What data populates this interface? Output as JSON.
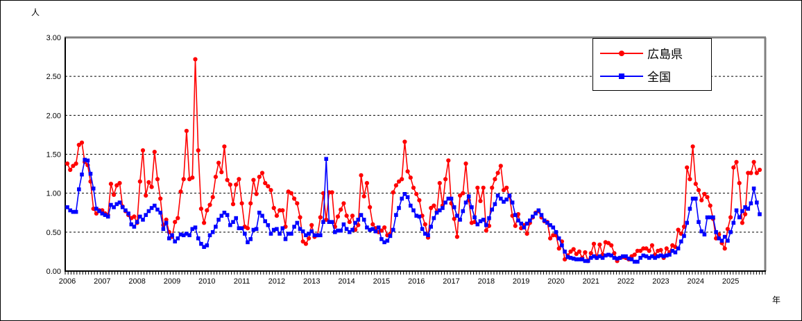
{
  "page": {
    "background": "#FFFFFF",
    "border_color": "#000000"
  },
  "chart_data": {
    "type": "line",
    "title": "",
    "ylabel": "人",
    "xlabel": "年",
    "ylim": [
      0.0,
      3.0
    ],
    "ytick_interval": 0.5,
    "ytick_labels": [
      "0.00",
      "0.50",
      "1.00",
      "1.50",
      "2.00",
      "2.50",
      "3.00"
    ],
    "x_unit": "month",
    "x_start": "2006-01",
    "x_end": "2025-11",
    "x_year_labels": [
      "2006",
      "2007",
      "2008",
      "2009",
      "2010",
      "2011",
      "2012",
      "2013",
      "2014",
      "2015",
      "2016",
      "2017",
      "2018",
      "2019",
      "2020",
      "2021",
      "2022",
      "2023",
      "2024",
      "2025"
    ],
    "grid": "horizontal-dashed",
    "legend_position": "top-right",
    "series": [
      {
        "key": "hiroshima",
        "name": "広島県",
        "color": "#FF0000",
        "marker": "circle",
        "values": [
          1.38,
          1.3,
          1.35,
          1.38,
          1.62,
          1.65,
          1.4,
          1.36,
          1.15,
          0.8,
          0.74,
          0.78,
          0.78,
          0.74,
          0.72,
          1.12,
          0.98,
          1.1,
          1.13,
          0.83,
          0.77,
          0.72,
          0.68,
          0.7,
          0.62,
          1.15,
          1.55,
          0.97,
          1.14,
          1.08,
          1.53,
          1.18,
          0.93,
          0.59,
          0.66,
          0.5,
          0.44,
          0.63,
          0.68,
          1.02,
          1.18,
          1.8,
          1.18,
          1.2,
          2.72,
          1.55,
          0.8,
          0.62,
          0.78,
          0.85,
          0.95,
          1.21,
          1.39,
          1.27,
          1.6,
          1.17,
          1.11,
          0.86,
          1.11,
          1.18,
          0.87,
          0.57,
          0.55,
          0.87,
          1.17,
          0.99,
          1.21,
          1.26,
          1.13,
          1.09,
          1.04,
          0.81,
          0.71,
          0.78,
          0.78,
          0.57,
          1.02,
          1.0,
          0.93,
          0.87,
          0.69,
          0.38,
          0.35,
          0.42,
          0.59,
          0.44,
          0.46,
          0.69,
          1.0,
          0.66,
          1.01,
          1.01,
          0.57,
          0.7,
          0.79,
          0.87,
          0.71,
          0.63,
          0.71,
          0.53,
          0.59,
          1.23,
          0.96,
          1.13,
          0.82,
          0.6,
          0.55,
          0.5,
          0.52,
          0.56,
          0.46,
          0.48,
          1.01,
          1.1,
          1.15,
          1.18,
          1.66,
          1.28,
          1.2,
          1.07,
          0.99,
          0.91,
          0.71,
          0.6,
          0.43,
          0.81,
          0.84,
          0.76,
          1.13,
          0.84,
          1.18,
          1.42,
          0.87,
          0.67,
          0.44,
          0.97,
          1.0,
          1.38,
          0.91,
          0.62,
          0.63,
          1.07,
          0.9,
          1.07,
          0.52,
          0.58,
          1.07,
          1.18,
          1.26,
          1.35,
          1.04,
          1.07,
          0.96,
          0.71,
          0.58,
          0.73,
          0.55,
          0.59,
          0.48,
          0.62,
          0.69,
          0.75,
          0.77,
          0.69,
          0.64,
          0.63,
          0.42,
          0.46,
          0.46,
          0.29,
          0.38,
          0.15,
          0.2,
          0.25,
          0.28,
          0.22,
          0.25,
          0.17,
          0.24,
          0.13,
          0.23,
          0.35,
          0.17,
          0.34,
          0.21,
          0.37,
          0.36,
          0.33,
          0.23,
          0.13,
          0.17,
          0.18,
          0.17,
          0.15,
          0.19,
          0.21,
          0.26,
          0.26,
          0.29,
          0.29,
          0.26,
          0.33,
          0.21,
          0.26,
          0.27,
          0.17,
          0.29,
          0.24,
          0.33,
          0.31,
          0.53,
          0.48,
          0.57,
          1.33,
          1.18,
          1.6,
          1.12,
          1.04,
          0.91,
          0.99,
          0.95,
          0.84,
          0.67,
          0.42,
          0.47,
          0.36,
          0.29,
          0.54,
          0.69,
          1.33,
          1.4,
          1.13,
          0.62,
          0.73,
          1.26,
          1.26,
          1.4,
          1.26,
          1.3
        ]
      },
      {
        "key": "zenkoku",
        "name": "全国",
        "color": "#0000FF",
        "marker": "square",
        "values": [
          0.82,
          0.78,
          0.76,
          0.76,
          1.05,
          1.24,
          1.43,
          1.42,
          1.25,
          1.06,
          0.8,
          0.77,
          0.74,
          0.72,
          0.7,
          0.85,
          0.82,
          0.86,
          0.88,
          0.82,
          0.78,
          0.74,
          0.6,
          0.57,
          0.63,
          0.7,
          0.66,
          0.72,
          0.77,
          0.81,
          0.84,
          0.79,
          0.75,
          0.54,
          0.62,
          0.42,
          0.46,
          0.38,
          0.42,
          0.47,
          0.46,
          0.48,
          0.46,
          0.54,
          0.56,
          0.42,
          0.35,
          0.31,
          0.33,
          0.46,
          0.5,
          0.57,
          0.66,
          0.71,
          0.75,
          0.72,
          0.59,
          0.63,
          0.68,
          0.55,
          0.55,
          0.48,
          0.37,
          0.41,
          0.53,
          0.54,
          0.75,
          0.71,
          0.64,
          0.59,
          0.48,
          0.53,
          0.54,
          0.48,
          0.55,
          0.41,
          0.48,
          0.48,
          0.57,
          0.62,
          0.54,
          0.51,
          0.46,
          0.48,
          0.51,
          0.46,
          0.46,
          0.46,
          0.63,
          1.44,
          0.63,
          0.63,
          0.5,
          0.52,
          0.52,
          0.6,
          0.54,
          0.5,
          0.53,
          0.62,
          0.66,
          0.72,
          0.66,
          0.56,
          0.53,
          0.54,
          0.51,
          0.56,
          0.41,
          0.37,
          0.39,
          0.45,
          0.53,
          0.72,
          0.81,
          0.93,
          0.99,
          0.95,
          0.84,
          0.78,
          0.71,
          0.7,
          0.54,
          0.48,
          0.46,
          0.57,
          0.68,
          0.75,
          0.78,
          0.81,
          0.88,
          0.93,
          0.93,
          0.82,
          0.71,
          0.66,
          0.77,
          0.88,
          0.96,
          0.82,
          0.69,
          0.6,
          0.64,
          0.66,
          0.59,
          0.68,
          0.79,
          0.86,
          0.97,
          0.93,
          0.89,
          0.92,
          0.97,
          0.88,
          0.72,
          0.65,
          0.61,
          0.56,
          0.61,
          0.65,
          0.7,
          0.74,
          0.78,
          0.72,
          0.65,
          0.62,
          0.59,
          0.56,
          0.5,
          0.42,
          0.33,
          0.25,
          0.18,
          0.17,
          0.16,
          0.15,
          0.15,
          0.15,
          0.13,
          0.13,
          0.17,
          0.19,
          0.17,
          0.19,
          0.17,
          0.2,
          0.21,
          0.2,
          0.17,
          0.16,
          0.17,
          0.19,
          0.19,
          0.16,
          0.15,
          0.12,
          0.12,
          0.17,
          0.2,
          0.19,
          0.17,
          0.19,
          0.17,
          0.19,
          0.2,
          0.19,
          0.2,
          0.21,
          0.26,
          0.24,
          0.29,
          0.38,
          0.45,
          0.62,
          0.8,
          0.93,
          0.93,
          0.63,
          0.51,
          0.47,
          0.69,
          0.69,
          0.69,
          0.5,
          0.42,
          0.39,
          0.44,
          0.39,
          0.5,
          0.62,
          0.78,
          0.69,
          0.77,
          0.82,
          0.8,
          0.87,
          1.06,
          0.88,
          0.73
        ]
      }
    ]
  }
}
